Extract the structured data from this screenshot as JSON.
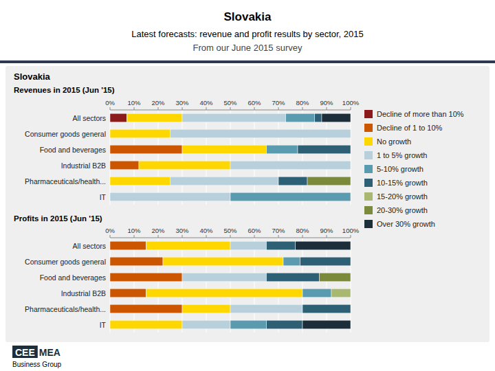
{
  "chart_data": [
    {
      "type": "bar",
      "orientation": "horizontal",
      "stacked": true,
      "title": "Revenues in 2015 (Jun '15)",
      "annotations": [
        "Slovakia",
        "Latest forecasts: revenue and profit results by sector, 2015",
        "From our June 2015 survey",
        "Slovakia",
        "CEE",
        "MEA",
        "Business Group"
      ],
      "categories": [
        "All sectors",
        "Consumer goods general",
        "Food and beverages",
        "Industrial B2B",
        "Pharmaceuticals/health...",
        "IT"
      ],
      "series": [
        {
          "name": "Decline of more than 10%",
          "color": "#8B1A1A",
          "values": [
            7,
            0,
            0,
            0,
            0,
            0
          ]
        },
        {
          "name": "Decline of 1 to 10%",
          "color": "#CC5500",
          "values": [
            0,
            0,
            30,
            12,
            0,
            0
          ]
        },
        {
          "name": "No growth",
          "color": "#FFD700",
          "values": [
            23,
            25,
            35,
            38,
            25,
            0
          ]
        },
        {
          "name": "1 to 5% growth",
          "color": "#B8D0DC",
          "values": [
            43,
            75,
            0,
            50,
            45,
            50
          ]
        },
        {
          "name": "5-10% growth",
          "color": "#5B9BAF",
          "values": [
            12,
            0,
            13,
            0,
            0,
            50
          ]
        },
        {
          "name": "10-15% growth",
          "color": "#2E6075",
          "values": [
            3,
            0,
            22,
            0,
            12,
            0
          ]
        },
        {
          "name": "15-20% growth",
          "color": "#A8B870",
          "values": [
            0,
            0,
            0,
            0,
            0,
            0
          ]
        },
        {
          "name": "20-30% growth",
          "color": "#7A8A3A",
          "values": [
            0,
            0,
            0,
            0,
            18,
            0
          ]
        },
        {
          "name": "Over 30% growth",
          "color": "#1C2E3A",
          "values": [
            12,
            0,
            0,
            0,
            0,
            0
          ]
        }
      ],
      "xlim": [
        0,
        100
      ],
      "xticks": [
        {
          "value": 0,
          "label": "0%"
        },
        {
          "value": 10,
          "label": "10%"
        },
        {
          "value": 20,
          "label": "20%"
        },
        {
          "value": 30,
          "label": "30%"
        },
        {
          "value": 40,
          "label": "40%"
        },
        {
          "value": 50,
          "label": "50%"
        },
        {
          "value": 60,
          "label": "60%"
        },
        {
          "value": 70,
          "label": "70%"
        },
        {
          "value": 80,
          "label": "80%"
        },
        {
          "value": 90,
          "label": "90%"
        },
        {
          "value": 100,
          "label": "100%"
        }
      ],
      "grid": true,
      "legend": "right"
    },
    {
      "type": "bar",
      "orientation": "horizontal",
      "stacked": true,
      "title": "Profits in 2015 (Jun '15)",
      "categories": [
        "All sectors",
        "Consumer goods general",
        "Food and beverages",
        "Industrial B2B",
        "Pharmaceuticals/health...",
        "IT"
      ],
      "series": [
        {
          "name": "Decline of more than 10%",
          "color": "#8B1A1A",
          "values": [
            0,
            0,
            0,
            0,
            0,
            0
          ]
        },
        {
          "name": "Decline of 1 to 10%",
          "color": "#CC5500",
          "values": [
            15,
            22,
            30,
            15,
            30,
            0
          ]
        },
        {
          "name": "No growth",
          "color": "#FFD700",
          "values": [
            35,
            50,
            0,
            65,
            20,
            30
          ]
        },
        {
          "name": "1 to 5% growth",
          "color": "#B8D0DC",
          "values": [
            15,
            0,
            35,
            0,
            30,
            20
          ]
        },
        {
          "name": "5-10% growth",
          "color": "#5B9BAF",
          "values": [
            0,
            7,
            0,
            12,
            0,
            15
          ]
        },
        {
          "name": "10-15% growth",
          "color": "#2E6075",
          "values": [
            12,
            21,
            22,
            0,
            20,
            15
          ]
        },
        {
          "name": "15-20% growth",
          "color": "#A8B870",
          "values": [
            0,
            0,
            0,
            8,
            0,
            0
          ]
        },
        {
          "name": "20-30% growth",
          "color": "#7A8A3A",
          "values": [
            0,
            0,
            13,
            0,
            0,
            0
          ]
        },
        {
          "name": "Over 30% growth",
          "color": "#1C2E3A",
          "values": [
            23,
            0,
            0,
            0,
            0,
            20
          ]
        }
      ],
      "xlim": [
        0,
        100
      ],
      "xticks": [
        {
          "value": 0,
          "label": "0%"
        },
        {
          "value": 10,
          "label": "10%"
        },
        {
          "value": 20,
          "label": "20%"
        },
        {
          "value": 30,
          "label": "30%"
        },
        {
          "value": 40,
          "label": "40%"
        },
        {
          "value": 50,
          "label": "50%"
        },
        {
          "value": 60,
          "label": "60%"
        },
        {
          "value": 70,
          "label": "70%"
        },
        {
          "value": 80,
          "label": "80%"
        },
        {
          "value": 90,
          "label": "90%"
        },
        {
          "value": 100,
          "label": "100%"
        }
      ],
      "grid": true
    }
  ]
}
